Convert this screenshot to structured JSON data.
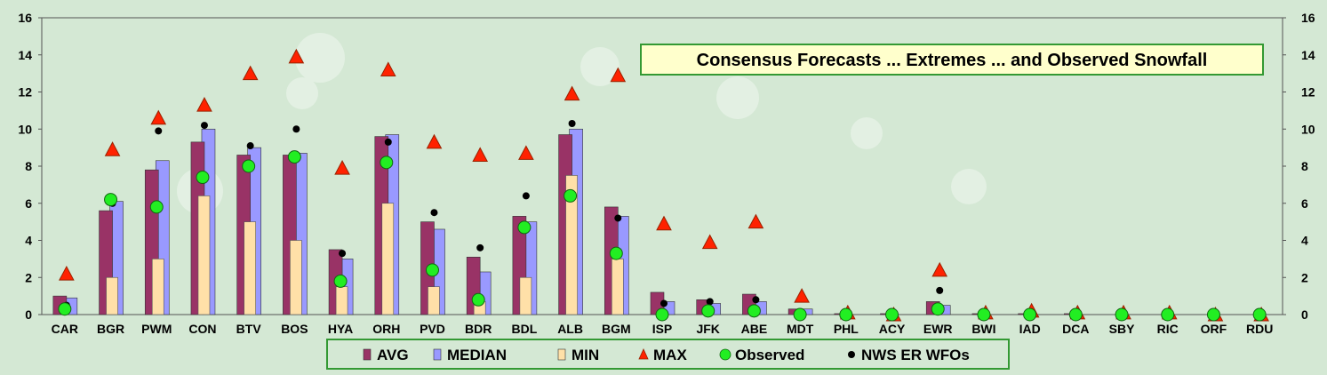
{
  "chart_data": {
    "type": "bar",
    "title": "Consensus Forecasts ... Extremes ... and Observed Snowfall",
    "xlabel": "",
    "ylabel": "",
    "ylim": [
      0,
      16
    ],
    "yticks": [
      0,
      2,
      4,
      6,
      8,
      10,
      12,
      14,
      16
    ],
    "grid": false,
    "legend_position": "bottom",
    "categories": [
      "CAR",
      "BGR",
      "PWM",
      "CON",
      "BTV",
      "BOS",
      "HYA",
      "ORH",
      "PVD",
      "BDR",
      "BDL",
      "ALB",
      "BGM",
      "ISP",
      "JFK",
      "ABE",
      "MDT",
      "PHL",
      "ACY",
      "EWR",
      "BWI",
      "IAD",
      "DCA",
      "SBY",
      "RIC",
      "ORF",
      "RDU"
    ],
    "series": [
      {
        "name": "AVG",
        "kind": "bar",
        "color": "#993366",
        "values": [
          1.0,
          5.6,
          7.8,
          9.3,
          8.6,
          8.6,
          3.5,
          9.6,
          5.0,
          3.1,
          5.3,
          9.7,
          5.8,
          1.2,
          0.8,
          1.1,
          0.3,
          0.05,
          0.05,
          0.7,
          0.05,
          0.05,
          0.05,
          0.0,
          0.0,
          0.0,
          0.0
        ]
      },
      {
        "name": "MEDIAN",
        "kind": "bar",
        "color": "#9999ff",
        "values": [
          0.9,
          6.1,
          8.3,
          10.0,
          9.0,
          8.7,
          3.0,
          9.7,
          4.6,
          2.3,
          5.0,
          10.0,
          5.3,
          0.7,
          0.6,
          0.7,
          0.3,
          0.0,
          0.0,
          0.5,
          0.0,
          0.0,
          0.0,
          0.0,
          0.0,
          0.0,
          0.0
        ]
      },
      {
        "name": "MIN",
        "kind": "bar",
        "color": "#ffe0a8",
        "values": [
          0.0,
          2.0,
          3.0,
          6.4,
          5.0,
          4.0,
          1.5,
          6.0,
          1.5,
          0.7,
          2.0,
          7.5,
          3.0,
          0.0,
          0.0,
          0.0,
          0.0,
          0.0,
          0.0,
          0.0,
          0.0,
          0.0,
          0.0,
          0.0,
          0.0,
          0.0,
          0.0
        ]
      },
      {
        "name": "MAX",
        "kind": "triangle",
        "color": "#ff2200",
        "values": [
          2.2,
          8.9,
          10.6,
          11.3,
          13.0,
          13.9,
          7.9,
          13.2,
          9.3,
          8.6,
          8.7,
          11.9,
          12.9,
          4.9,
          3.9,
          5.0,
          1.0,
          0.1,
          0.0,
          2.4,
          0.1,
          0.2,
          0.1,
          0.1,
          0.1,
          0.0,
          0.0
        ]
      },
      {
        "name": "Observed",
        "kind": "circle",
        "color": "#22ee22",
        "values": [
          0.3,
          6.2,
          5.8,
          7.4,
          8.0,
          8.5,
          1.8,
          8.2,
          2.4,
          0.8,
          4.7,
          6.4,
          3.3,
          0.0,
          0.2,
          0.2,
          0.0,
          0.0,
          0.0,
          0.3,
          0.0,
          0.0,
          0.0,
          0.0,
          0.0,
          0.0,
          0.0
        ]
      },
      {
        "name": "NWS ER WFOs",
        "kind": "dot",
        "color": "#000000",
        "values": [
          0.5,
          6.0,
          9.9,
          10.2,
          9.1,
          10.0,
          3.3,
          9.3,
          5.5,
          3.6,
          6.4,
          10.3,
          5.2,
          0.6,
          0.7,
          0.8,
          0.0,
          0.0,
          0.0,
          1.3,
          0.0,
          0.0,
          0.0,
          0.0,
          0.0,
          0.0,
          0.0
        ]
      }
    ]
  },
  "colors": {
    "background": "#d4e8d4",
    "plot_border": "#555555",
    "title_box_bg": "#ffffcc",
    "title_box_border": "#339933",
    "legend_border": "#339933"
  }
}
